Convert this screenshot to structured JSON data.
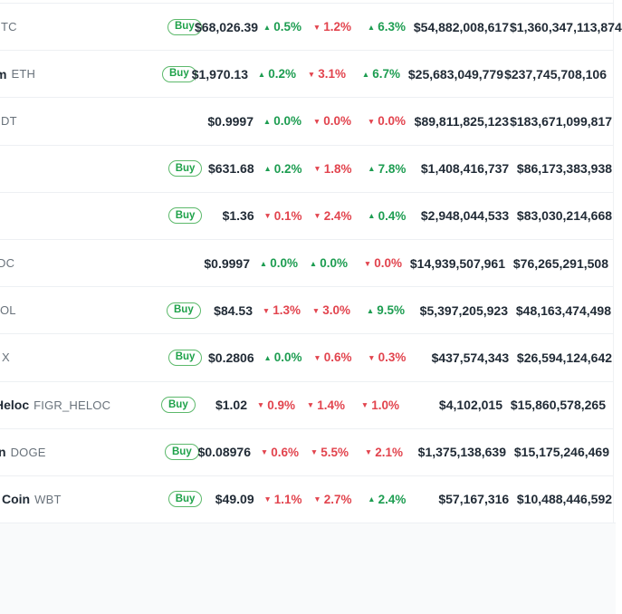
{
  "table": {
    "buy_label": "Buy",
    "colors": {
      "up": "#1d9d51",
      "down": "#e2444e",
      "buy_green": "#1fa24a"
    },
    "rows": [
      {
        "name_fragment": "",
        "symbol_fragment": "TC",
        "indent": -1,
        "buy": true,
        "price": "$68,026.39",
        "change_1h": {
          "dir": "up",
          "value": "0.5%"
        },
        "change_24h": {
          "dir": "down",
          "value": "1.2%"
        },
        "change_7d": {
          "dir": "up",
          "value": "6.3%"
        },
        "volume": "$54,882,008,617",
        "market_cap": "$1,360,347,113,874"
      },
      {
        "name_fragment": "m",
        "symbol_fragment": "ETH",
        "indent": -7,
        "buy": true,
        "price": "$1,970.13",
        "change_1h": {
          "dir": "up",
          "value": "0.2%"
        },
        "change_24h": {
          "dir": "down",
          "value": "3.1%"
        },
        "change_7d": {
          "dir": "up",
          "value": "6.7%"
        },
        "volume": "$25,683,049,779",
        "market_cap": "$237,745,708,106"
      },
      {
        "name_fragment": "",
        "symbol_fragment": "DT",
        "indent": -1,
        "buy": false,
        "price": "$0.9997",
        "change_1h": {
          "dir": "up",
          "value": "0.0%"
        },
        "change_24h": {
          "dir": "down",
          "value": "0.0%"
        },
        "change_7d": {
          "dir": "down",
          "value": "0.0%"
        },
        "volume": "$89,811,825,123",
        "market_cap": "$183,671,099,817"
      },
      {
        "name_fragment": "",
        "symbol_fragment": "",
        "indent": 0,
        "buy": true,
        "price": "$631.68",
        "change_1h": {
          "dir": "up",
          "value": "0.2%"
        },
        "change_24h": {
          "dir": "down",
          "value": "1.8%"
        },
        "change_7d": {
          "dir": "up",
          "value": "7.8%"
        },
        "volume": "$1,408,416,737",
        "market_cap": "$86,173,383,938"
      },
      {
        "name_fragment": "",
        "symbol_fragment": "",
        "indent": 0,
        "buy": true,
        "price": "$1.36",
        "change_1h": {
          "dir": "down",
          "value": "0.1%"
        },
        "change_24h": {
          "dir": "down",
          "value": "2.4%"
        },
        "change_7d": {
          "dir": "up",
          "value": "0.4%"
        },
        "volume": "$2,948,044,533",
        "market_cap": "$83,030,214,668"
      },
      {
        "name_fragment": "",
        "symbol_fragment": "DC",
        "indent": -5,
        "buy": false,
        "price": "$0.9997",
        "change_1h": {
          "dir": "up",
          "value": "0.0%"
        },
        "change_24h": {
          "dir": "up",
          "value": "0.0%"
        },
        "change_7d": {
          "dir": "down",
          "value": "0.0%"
        },
        "volume": "$14,939,507,961",
        "market_cap": "$76,265,291,508"
      },
      {
        "name_fragment": "",
        "symbol_fragment": "OL",
        "indent": -2,
        "buy": true,
        "price": "$84.53",
        "change_1h": {
          "dir": "down",
          "value": "1.3%"
        },
        "change_24h": {
          "dir": "down",
          "value": "3.0%"
        },
        "change_7d": {
          "dir": "up",
          "value": "9.5%"
        },
        "volume": "$5,397,205,923",
        "market_cap": "$48,163,474,498"
      },
      {
        "name_fragment": "",
        "symbol_fragment": "X",
        "indent": 0,
        "buy": true,
        "price": "$0.2806",
        "change_1h": {
          "dir": "up",
          "value": "0.0%"
        },
        "change_24h": {
          "dir": "down",
          "value": "0.6%"
        },
        "change_7d": {
          "dir": "down",
          "value": "0.3%"
        },
        "volume": "$437,574,343",
        "market_cap": "$26,594,124,642"
      },
      {
        "name_fragment": "Heloc",
        "symbol_fragment": "FIGR_HELOC",
        "indent": -8,
        "buy": true,
        "price": "$1.02",
        "change_1h": {
          "dir": "down",
          "value": "0.9%"
        },
        "change_24h": {
          "dir": "down",
          "value": "1.4%"
        },
        "change_7d": {
          "dir": "down",
          "value": "1.0%"
        },
        "volume": "$4,102,015",
        "market_cap": "$15,860,578,265"
      },
      {
        "name_fragment": "n",
        "symbol_fragment": "DOGE",
        "indent": -4,
        "buy": true,
        "price": "$0.08976",
        "change_1h": {
          "dir": "down",
          "value": "0.6%"
        },
        "change_24h": {
          "dir": "down",
          "value": "5.5%"
        },
        "change_7d": {
          "dir": "down",
          "value": "2.1%"
        },
        "volume": "$1,375,138,639",
        "market_cap": "$15,175,246,469"
      },
      {
        "name_fragment": "Coin",
        "symbol_fragment": "WBT",
        "indent": 0,
        "buy": true,
        "price": "$49.09",
        "change_1h": {
          "dir": "down",
          "value": "1.1%"
        },
        "change_24h": {
          "dir": "down",
          "value": "2.7%"
        },
        "change_7d": {
          "dir": "up",
          "value": "2.4%"
        },
        "volume": "$57,167,316",
        "market_cap": "$10,488,446,592"
      }
    ]
  }
}
